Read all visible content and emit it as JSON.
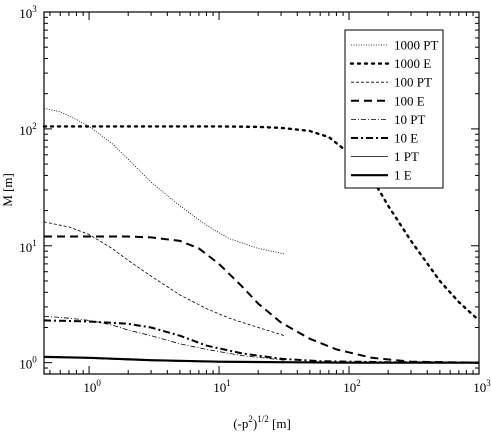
{
  "chart_data": {
    "type": "line",
    "title": "",
    "xlabel": "(-p²)^1/2 [m]",
    "ylabel": "M [m]",
    "xscale": "log",
    "yscale": "log",
    "xlim": [
      0.45,
      1000
    ],
    "ylim": [
      0.8,
      1000
    ],
    "grid": false,
    "legend_position": "top-right",
    "x_ticks": [
      {
        "value": 1,
        "base": "10",
        "exp": "0"
      },
      {
        "value": 10,
        "base": "10",
        "exp": "1"
      },
      {
        "value": 100,
        "base": "10",
        "exp": "2"
      },
      {
        "value": 1000,
        "base": "10",
        "exp": "3"
      }
    ],
    "y_ticks": [
      {
        "value": 1,
        "base": "10",
        "exp": "0"
      },
      {
        "value": 10,
        "base": "10",
        "exp": "1"
      },
      {
        "value": 100,
        "base": "10",
        "exp": "2"
      },
      {
        "value": 1000,
        "base": "10",
        "exp": "3"
      }
    ],
    "series": [
      {
        "name": "1000 PT",
        "style": "dotted-thin",
        "points": [
          [
            0.45,
            150
          ],
          [
            0.6,
            140
          ],
          [
            0.8,
            120
          ],
          [
            1,
            105
          ],
          [
            1.5,
            75
          ],
          [
            2,
            55
          ],
          [
            3,
            35
          ],
          [
            5,
            22
          ],
          [
            8,
            15
          ],
          [
            12,
            11.5
          ],
          [
            20,
            9.5
          ],
          [
            32,
            8.5
          ]
        ]
      },
      {
        "name": "1000 E",
        "style": "dotted-thick",
        "points": [
          [
            0.45,
            105
          ],
          [
            1,
            105
          ],
          [
            5,
            105
          ],
          [
            10,
            105
          ],
          [
            20,
            104
          ],
          [
            30,
            102
          ],
          [
            50,
            96
          ],
          [
            70,
            85
          ],
          [
            100,
            62
          ],
          [
            150,
            38
          ],
          [
            200,
            22
          ],
          [
            300,
            11
          ],
          [
            500,
            5
          ],
          [
            700,
            3.3
          ],
          [
            1000,
            2.3
          ]
        ]
      },
      {
        "name": "100 PT",
        "style": "dashed-thin",
        "points": [
          [
            0.45,
            16
          ],
          [
            0.7,
            14.5
          ],
          [
            1,
            12.5
          ],
          [
            1.5,
            9.5
          ],
          [
            2,
            7.5
          ],
          [
            3,
            5.5
          ],
          [
            5,
            3.8
          ],
          [
            8,
            2.9
          ],
          [
            12,
            2.4
          ],
          [
            20,
            2
          ],
          [
            32,
            1.7
          ]
        ]
      },
      {
        "name": "100 E",
        "style": "dashed-thick",
        "points": [
          [
            0.45,
            12
          ],
          [
            1,
            12
          ],
          [
            2,
            12
          ],
          [
            3,
            11.8
          ],
          [
            5,
            11
          ],
          [
            7,
            9.5
          ],
          [
            10,
            7
          ],
          [
            15,
            4.5
          ],
          [
            20,
            3.2
          ],
          [
            30,
            2.2
          ],
          [
            50,
            1.6
          ],
          [
            80,
            1.3
          ],
          [
            150,
            1.1
          ],
          [
            300,
            1.02
          ],
          [
            1000,
            1
          ]
        ]
      },
      {
        "name": "10 PT",
        "style": "dashdot-thin",
        "points": [
          [
            0.45,
            2.5
          ],
          [
            0.7,
            2.4
          ],
          [
            1,
            2.3
          ],
          [
            1.5,
            2.1
          ],
          [
            2,
            1.9
          ],
          [
            3,
            1.7
          ],
          [
            5,
            1.45
          ],
          [
            8,
            1.3
          ],
          [
            15,
            1.15
          ],
          [
            32,
            1.05
          ]
        ]
      },
      {
        "name": "10 E",
        "style": "dashdot-thick",
        "points": [
          [
            0.45,
            2.3
          ],
          [
            1,
            2.25
          ],
          [
            2,
            2.15
          ],
          [
            3,
            2.0
          ],
          [
            5,
            1.7
          ],
          [
            8,
            1.4
          ],
          [
            15,
            1.2
          ],
          [
            30,
            1.08
          ],
          [
            60,
            1.03
          ],
          [
            200,
            1.01
          ],
          [
            1000,
            1
          ]
        ]
      },
      {
        "name": "1 PT",
        "style": "solid-thin",
        "points": [
          [
            0.45,
            1.12
          ],
          [
            1,
            1.09
          ],
          [
            3,
            1.04
          ],
          [
            10,
            1.01
          ],
          [
            32,
            1.0
          ]
        ]
      },
      {
        "name": "1 E",
        "style": "solid-thick",
        "points": [
          [
            0.45,
            1.12
          ],
          [
            1,
            1.1
          ],
          [
            3,
            1.05
          ],
          [
            10,
            1.02
          ],
          [
            30,
            1.01
          ],
          [
            100,
            1.0
          ],
          [
            1000,
            1.0
          ]
        ]
      }
    ]
  }
}
